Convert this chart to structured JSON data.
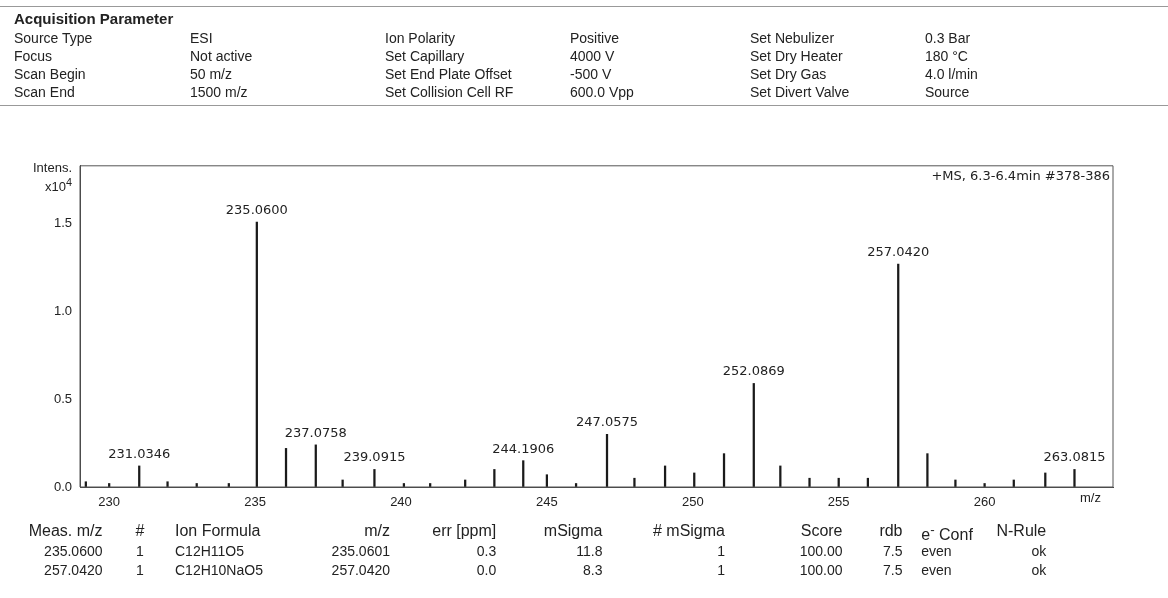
{
  "chart_data": {
    "type": "bar",
    "title": "Acquisition Parameter",
    "subtitle": "+MS, 6.3-6.4min #378-386",
    "xlabel": "m/z",
    "ylabel": "Intens. x10$^{4}$",
    "x": [
      229.2,
      230.0,
      231.03,
      232.0,
      233.0,
      234.1,
      235.06,
      236.06,
      237.08,
      238.0,
      239.09,
      240.1,
      241.0,
      242.2,
      243.2,
      244.19,
      245.0,
      246.0,
      247.06,
      248.0,
      249.05,
      250.05,
      251.07,
      252.09,
      253.0,
      254.0,
      255.0,
      256.0,
      257.04,
      258.04,
      259.0,
      260.0,
      261.0,
      262.08,
      263.08
    ],
    "values": [
      0.03,
      0.02,
      0.12,
      0.03,
      0.02,
      0.02,
      1.51,
      0.22,
      0.24,
      0.04,
      0.1,
      0.02,
      0.02,
      0.04,
      0.1,
      0.15,
      0.07,
      0.02,
      0.3,
      0.05,
      0.12,
      0.08,
      0.19,
      0.59,
      0.12,
      0.05,
      0.05,
      0.05,
      1.27,
      0.19,
      0.04,
      0.02,
      0.04,
      0.08,
      0.1
    ],
    "color": "#1a1a1a",
    "xlim": [
      229,
      264.4
    ],
    "xticks": [
      230,
      235,
      240,
      245,
      250,
      255,
      260
    ],
    "ylim": [
      0,
      1.83
    ],
    "yticks": [
      {
        "value": 0,
        "label": "0.0"
      },
      {
        "value": 0.5,
        "label": "0.5"
      },
      {
        "value": 1,
        "label": "1.0"
      },
      {
        "value": 1.5,
        "label": "1.5"
      }
    ],
    "grid": false,
    "legend": false,
    "annotations": [
      {
        "text": "231.0346",
        "x": 231.03,
        "y": 0.12
      },
      {
        "text": "235.0600",
        "x": 235.06,
        "y": 1.51
      },
      {
        "text": "237.0758",
        "x": 237.08,
        "y": 0.24
      },
      {
        "text": "239.0915",
        "x": 239.09,
        "y": 0.1
      },
      {
        "text": "244.1906",
        "x": 244.19,
        "y": 0.15
      },
      {
        "text": "247.0575",
        "x": 247.06,
        "y": 0.3
      },
      {
        "text": "252.0869",
        "x": 252.09,
        "y": 0.59
      },
      {
        "text": "257.0420",
        "x": 257.04,
        "y": 1.27
      },
      {
        "text": "263.0815",
        "x": 263.08,
        "y": 0.1
      },
      "Source Type\tESI\tIon Polarity\tPositive\tSet Nebulizer\t0.3 Bar",
      "Focus\tNot active\tSet Capillary\t4000 V\tSet Dry Heater\t180 °C",
      "Scan Begin\t50 m/z\tSet End Plate Offset\t-500 V\tSet Dry Gas\t4.0 l/min",
      "Scan End\t1500 m/z\tSet Collision Cell RF\t600.0 Vpp\tSet Divert Valve\tSource",
      "Meas. m/z\t#\tIon Formula\tm/z\terr [ppm]\tmSigma\t# mSigma\tScore\trdb\te$^{-}$ Conf\tN-Rule",
      "235.0600\t1\tC12H11O5\t235.0601\t0.3\t11.8\t1\t100.00\t7.5\teven\tok",
      "257.0420\t1\tC12H10NaO5\t257.0420\t0.0\t8.3\t1\t100.00\t7.5\teven\tok"
    ]
  }
}
